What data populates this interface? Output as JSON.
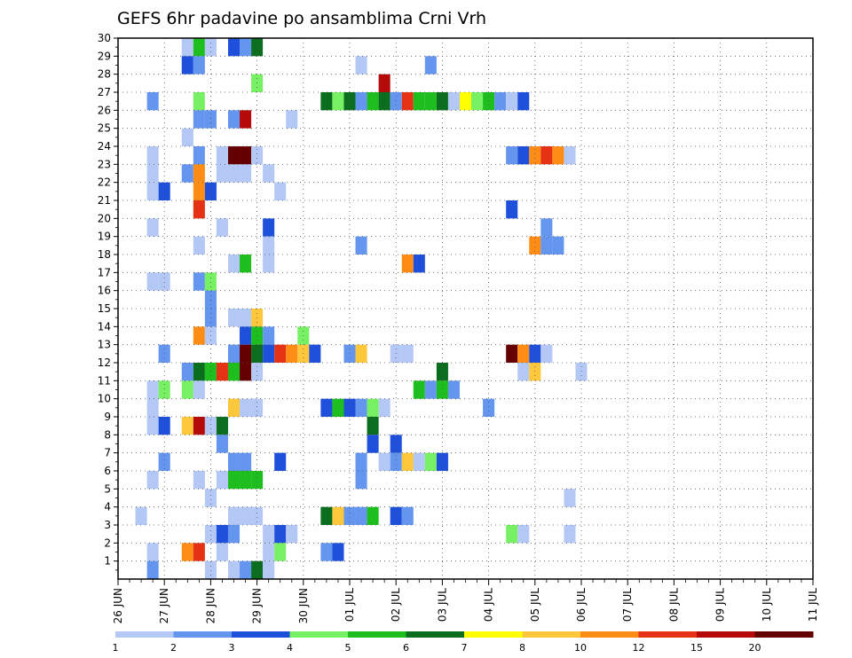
{
  "chart_data": {
    "type": "heatmap",
    "title": "GEFS 6hr padavine po ansamblima Crni Vrh",
    "y_ticks": [
      1,
      2,
      3,
      4,
      5,
      6,
      7,
      8,
      9,
      10,
      11,
      12,
      13,
      14,
      15,
      16,
      17,
      18,
      19,
      20,
      21,
      22,
      23,
      24,
      25,
      26,
      27,
      28,
      29,
      30
    ],
    "x_ticks": [
      "26 JUN",
      "27 JUN",
      "28 JUN",
      "29 JUN",
      "30 JUN",
      "01 JUL",
      "02 JUL",
      "03 JUL",
      "04 JUL",
      "05 JUL",
      "06 JUL",
      "07 JUL",
      "08 JUL",
      "09 JUL",
      "10 JUL",
      "11 JUL"
    ],
    "steps_per_day": 4,
    "colorbar": {
      "labels": [
        "1",
        "2",
        "3",
        "4",
        "5",
        "6",
        "7",
        "8",
        "10",
        "12",
        "15",
        "20"
      ],
      "colors": [
        "#b4c8f5",
        "#6496f0",
        "#1e50dc",
        "#78f064",
        "#1ebe1e",
        "#0a6e1e",
        "#ffff00",
        "#ffc83c",
        "#ff8c14",
        "#e63214",
        "#b40a0a",
        "#640000"
      ]
    },
    "grid": true,
    "cells": [
      [
        29,
        2,
        0
      ],
      [
        29,
        3,
        4
      ],
      [
        29,
        4,
        0
      ],
      [
        29,
        6,
        2
      ],
      [
        29,
        7,
        1
      ],
      [
        29,
        8,
        5
      ],
      [
        28,
        2,
        2
      ],
      [
        28,
        3,
        1
      ],
      [
        28,
        17,
        0
      ],
      [
        28,
        23,
        1
      ],
      [
        27,
        8,
        3
      ],
      [
        27,
        19,
        10
      ],
      [
        26,
        -1,
        1
      ],
      [
        26,
        3,
        3
      ],
      [
        26,
        14,
        5
      ],
      [
        26,
        15,
        3
      ],
      [
        26,
        16,
        5
      ],
      [
        26,
        17,
        1
      ],
      [
        26,
        18,
        4
      ],
      [
        26,
        19,
        5
      ],
      [
        26,
        20,
        1
      ],
      [
        26,
        21,
        9
      ],
      [
        26,
        22,
        4
      ],
      [
        26,
        23,
        4
      ],
      [
        26,
        24,
        5
      ],
      [
        26,
        25,
        0
      ],
      [
        26,
        26,
        6
      ],
      [
        26,
        27,
        3
      ],
      [
        26,
        28,
        4
      ],
      [
        26,
        29,
        1
      ],
      [
        26,
        30,
        0
      ],
      [
        26,
        31,
        2
      ],
      [
        25,
        3,
        1
      ],
      [
        25,
        4,
        1
      ],
      [
        25,
        6,
        1
      ],
      [
        25,
        7,
        10
      ],
      [
        25,
        11,
        0
      ],
      [
        24,
        2,
        0
      ],
      [
        23,
        -1,
        0
      ],
      [
        23,
        5,
        0
      ],
      [
        23,
        3,
        1
      ],
      [
        23,
        6,
        11
      ],
      [
        23,
        7,
        11
      ],
      [
        23,
        8,
        0
      ],
      [
        23,
        30,
        1
      ],
      [
        23,
        31,
        2
      ],
      [
        23,
        32,
        8
      ],
      [
        23,
        33,
        9
      ],
      [
        23,
        34,
        8
      ],
      [
        23,
        35,
        0
      ],
      [
        22,
        -1,
        0
      ],
      [
        22,
        5,
        0
      ],
      [
        22,
        6,
        0
      ],
      [
        22,
        2,
        1
      ],
      [
        22,
        3,
        8
      ],
      [
        22,
        7,
        0
      ],
      [
        22,
        9,
        0
      ],
      [
        21,
        -1,
        0
      ],
      [
        21,
        0,
        2
      ],
      [
        21,
        3,
        8
      ],
      [
        21,
        4,
        2
      ],
      [
        21,
        10,
        0
      ],
      [
        20,
        3,
        9
      ],
      [
        20,
        30,
        2
      ],
      [
        19,
        -1,
        0
      ],
      [
        19,
        5,
        0
      ],
      [
        19,
        9,
        2
      ],
      [
        19,
        33,
        1
      ],
      [
        18,
        3,
        0
      ],
      [
        18,
        9,
        0
      ],
      [
        18,
        17,
        1
      ],
      [
        18,
        32,
        8
      ],
      [
        18,
        33,
        1
      ],
      [
        18,
        34,
        1
      ],
      [
        17,
        6,
        0
      ],
      [
        17,
        7,
        4
      ],
      [
        17,
        9,
        0
      ],
      [
        17,
        21,
        8
      ],
      [
        17,
        22,
        2
      ],
      [
        16,
        -1,
        0
      ],
      [
        16,
        0,
        0
      ],
      [
        16,
        3,
        1
      ],
      [
        16,
        4,
        3
      ],
      [
        15,
        4,
        1
      ],
      [
        14,
        4,
        1
      ],
      [
        14,
        6,
        0
      ],
      [
        14,
        7,
        0
      ],
      [
        14,
        8,
        7
      ],
      [
        13,
        3,
        8
      ],
      [
        13,
        4,
        0
      ],
      [
        13,
        7,
        2
      ],
      [
        13,
        8,
        4
      ],
      [
        13,
        9,
        1
      ],
      [
        13,
        12,
        3
      ],
      [
        12,
        0,
        1
      ],
      [
        12,
        6,
        1
      ],
      [
        12,
        7,
        11
      ],
      [
        12,
        8,
        5
      ],
      [
        12,
        9,
        2
      ],
      [
        12,
        10,
        9
      ],
      [
        12,
        11,
        8
      ],
      [
        12,
        12,
        7
      ],
      [
        12,
        13,
        2
      ],
      [
        12,
        16,
        1
      ],
      [
        12,
        17,
        7
      ],
      [
        12,
        20,
        0
      ],
      [
        12,
        21,
        0
      ],
      [
        12,
        30,
        11
      ],
      [
        12,
        31,
        8
      ],
      [
        12,
        32,
        2
      ],
      [
        12,
        33,
        0
      ],
      [
        11,
        2,
        1
      ],
      [
        11,
        3,
        5
      ],
      [
        11,
        4,
        4
      ],
      [
        11,
        5,
        9
      ],
      [
        11,
        6,
        4
      ],
      [
        11,
        7,
        11
      ],
      [
        11,
        8,
        0
      ],
      [
        11,
        24,
        5
      ],
      [
        11,
        31,
        0
      ],
      [
        11,
        32,
        7
      ],
      [
        11,
        36,
        0
      ],
      [
        10,
        -1,
        0
      ],
      [
        10,
        0,
        3
      ],
      [
        10,
        2,
        3
      ],
      [
        10,
        3,
        0
      ],
      [
        10,
        22,
        4
      ],
      [
        10,
        23,
        1
      ],
      [
        10,
        24,
        4
      ],
      [
        10,
        25,
        1
      ],
      [
        9,
        -1,
        0
      ],
      [
        9,
        6,
        7
      ],
      [
        9,
        7,
        0
      ],
      [
        9,
        8,
        0
      ],
      [
        9,
        14,
        2
      ],
      [
        9,
        15,
        4
      ],
      [
        9,
        16,
        2
      ],
      [
        9,
        17,
        1
      ],
      [
        9,
        18,
        3
      ],
      [
        9,
        19,
        0
      ],
      [
        9,
        28,
        1
      ],
      [
        8,
        -1,
        0
      ],
      [
        8,
        0,
        2
      ],
      [
        8,
        4,
        4
      ],
      [
        8,
        5,
        5
      ],
      [
        8,
        2,
        7
      ],
      [
        8,
        3,
        10
      ],
      [
        8,
        4,
        0
      ],
      [
        8,
        18,
        5
      ],
      [
        7,
        5,
        1
      ],
      [
        7,
        18,
        2
      ],
      [
        7,
        20,
        2
      ],
      [
        6,
        0,
        1
      ],
      [
        6,
        6,
        1
      ],
      [
        6,
        7,
        1
      ],
      [
        6,
        10,
        2
      ],
      [
        6,
        17,
        1
      ],
      [
        6,
        19,
        0
      ],
      [
        6,
        20,
        1
      ],
      [
        6,
        21,
        7
      ],
      [
        6,
        22,
        0
      ],
      [
        6,
        23,
        3
      ],
      [
        6,
        24,
        2
      ],
      [
        5,
        -1,
        0
      ],
      [
        5,
        5,
        0
      ],
      [
        5,
        3,
        0
      ],
      [
        5,
        6,
        4
      ],
      [
        5,
        7,
        4
      ],
      [
        5,
        8,
        4
      ],
      [
        5,
        17,
        1
      ],
      [
        4,
        4,
        0
      ],
      [
        4,
        35,
        0
      ],
      [
        3,
        -2,
        0
      ],
      [
        3,
        6,
        0
      ],
      [
        3,
        7,
        0
      ],
      [
        3,
        8,
        0
      ],
      [
        3,
        14,
        5
      ],
      [
        3,
        15,
        7
      ],
      [
        3,
        16,
        1
      ],
      [
        3,
        17,
        1
      ],
      [
        3,
        18,
        4
      ],
      [
        3,
        20,
        2
      ],
      [
        3,
        21,
        1
      ],
      [
        2,
        4,
        0
      ],
      [
        2,
        5,
        2
      ],
      [
        2,
        6,
        1
      ],
      [
        2,
        9,
        0
      ],
      [
        2,
        10,
        2
      ],
      [
        2,
        11,
        0
      ],
      [
        2,
        30,
        3
      ],
      [
        2,
        31,
        0
      ],
      [
        2,
        35,
        0
      ],
      [
        1,
        -1,
        0
      ],
      [
        1,
        5,
        0
      ],
      [
        1,
        2,
        8
      ],
      [
        1,
        3,
        9
      ],
      [
        1,
        9,
        0
      ],
      [
        1,
        10,
        3
      ],
      [
        1,
        14,
        1
      ],
      [
        1,
        15,
        2
      ],
      [
        0,
        -1,
        1
      ],
      [
        0,
        4,
        0
      ],
      [
        0,
        6,
        0
      ],
      [
        0,
        7,
        1
      ],
      [
        0,
        8,
        5
      ],
      [
        0,
        9,
        0
      ]
    ]
  }
}
